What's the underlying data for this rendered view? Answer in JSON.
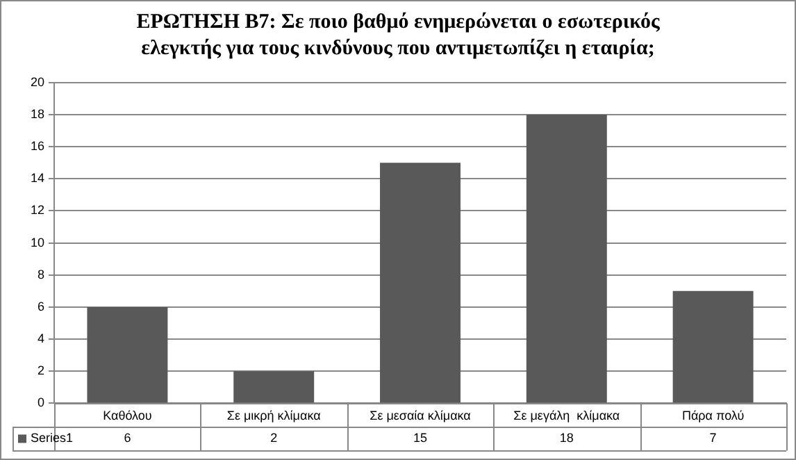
{
  "chart_data": {
    "type": "bar",
    "title": "ΕΡΩΤΗΣΗ Β7: Σε ποιο βαθμό ενημερώνεται ο εσωτερικός ελεγκτής για τους κινδύνους που αντιμετωπίζει η εταιρία;",
    "categories": [
      "Καθόλου",
      "Σε μικρή κλίμακα",
      "Σε μεσαία κλίμακα",
      "Σε μεγάλη  κλίμακα",
      "Πάρα πολύ"
    ],
    "series": [
      {
        "name": "Series1",
        "color": "#595959",
        "values": [
          6,
          2,
          15,
          18,
          7
        ]
      }
    ],
    "ylim": [
      0,
      20
    ],
    "yticks": [
      0,
      2,
      4,
      6,
      8,
      10,
      12,
      14,
      16,
      18,
      20
    ],
    "grid": "y",
    "legend": "bottom",
    "data_labels": true
  }
}
